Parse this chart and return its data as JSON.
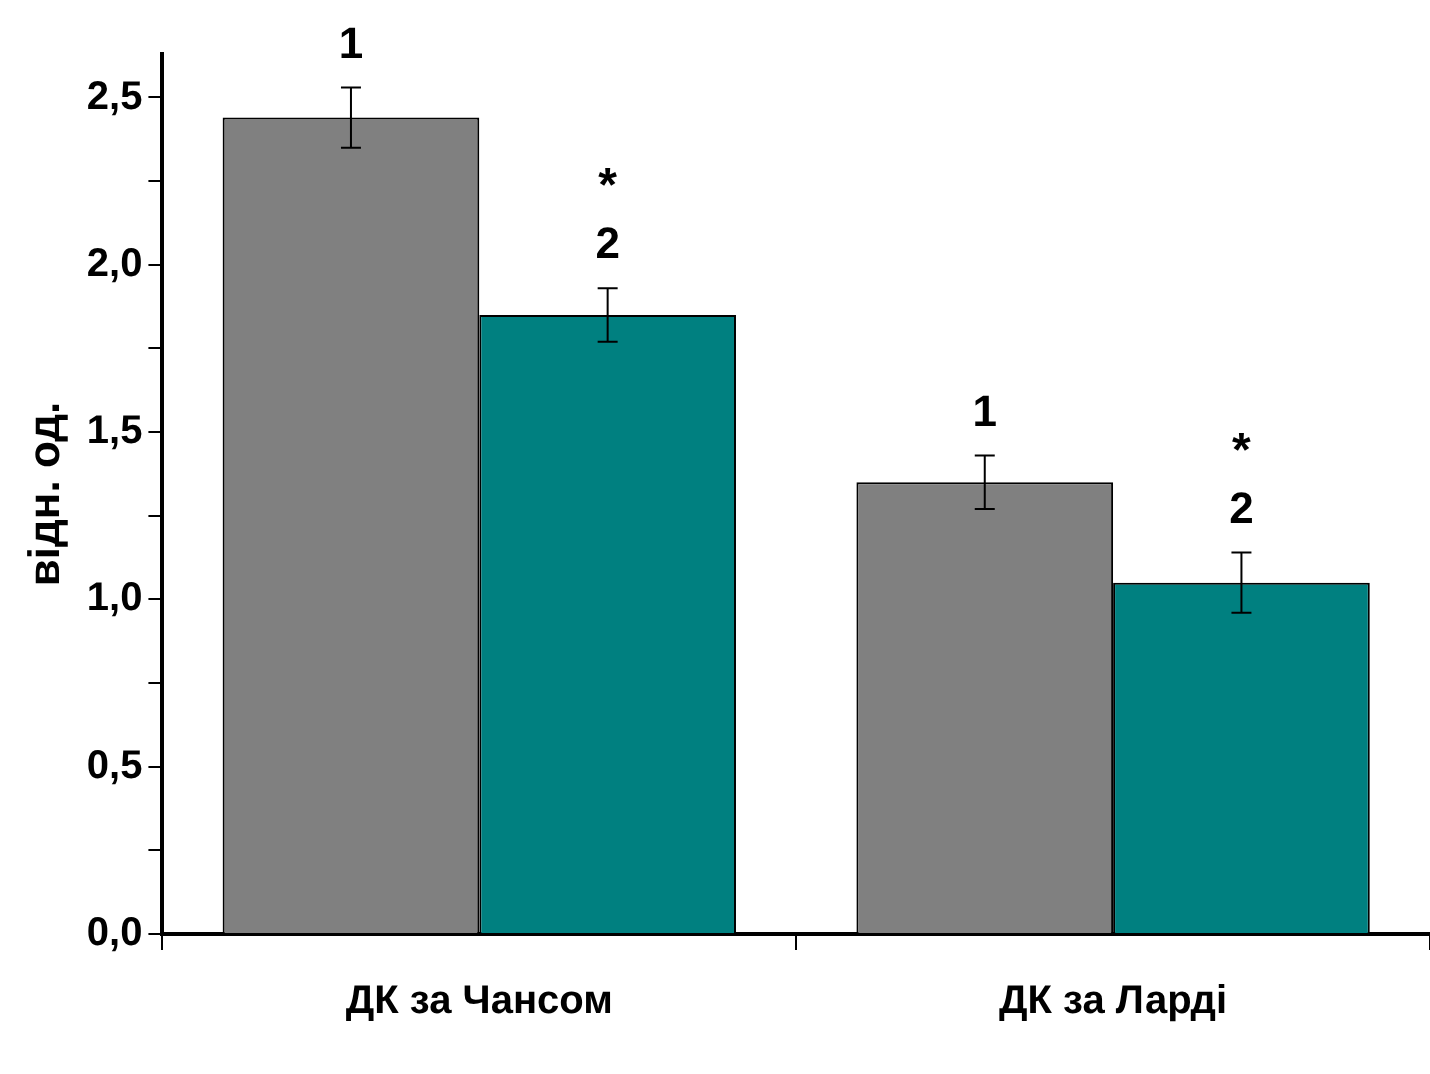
{
  "chart_data": {
    "type": "bar",
    "ylabel": "відн. од.",
    "categories": [
      "ДК за Чансом",
      "ДК за Ларді"
    ],
    "series": [
      {
        "name": "1",
        "color": "#808080",
        "values": [
          2.44,
          1.35
        ],
        "errors": [
          0.09,
          0.08
        ]
      },
      {
        "name": "2",
        "color": "#008080",
        "values": [
          1.85,
          1.05
        ],
        "errors": [
          0.08,
          0.09
        ]
      }
    ],
    "ylim": [
      0,
      2.63
    ],
    "yticks": [
      {
        "value": 0,
        "label": "0,0"
      },
      {
        "value": 0.25,
        "label": null
      },
      {
        "value": 0.5,
        "label": "0,5"
      },
      {
        "value": 0.75,
        "label": null
      },
      {
        "value": 1,
        "label": "1,0"
      },
      {
        "value": 1.25,
        "label": null
      },
      {
        "value": 1.5,
        "label": "1,5"
      },
      {
        "value": 1.75,
        "label": null
      },
      {
        "value": 2,
        "label": "2,0"
      },
      {
        "value": 2.25,
        "label": null
      },
      {
        "value": 2.5,
        "label": "2,5"
      }
    ],
    "annotations": [
      "*",
      "*"
    ],
    "grid": false,
    "legend": false
  }
}
